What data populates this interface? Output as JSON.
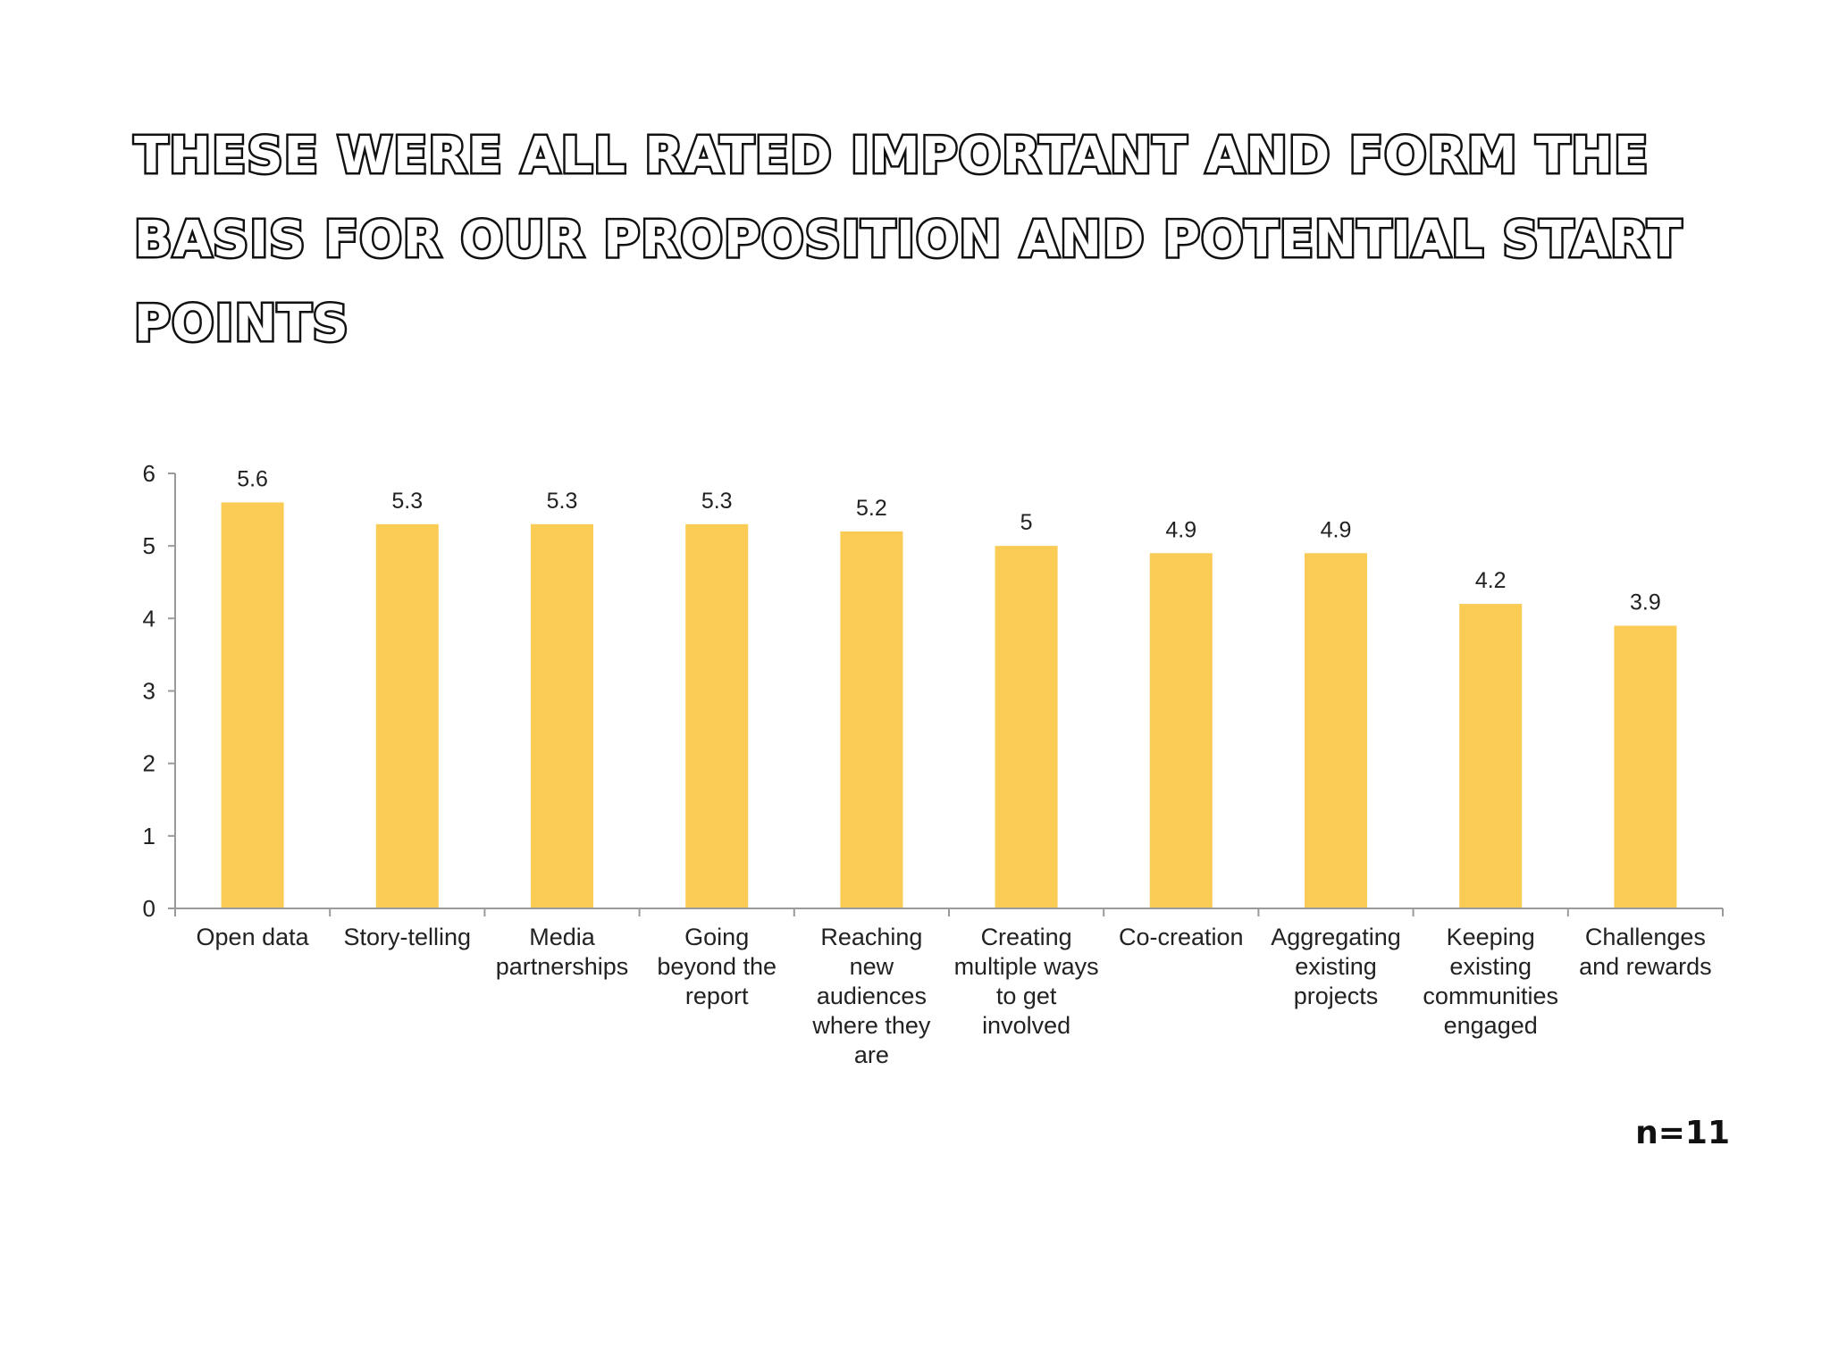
{
  "slide": {
    "title": "These were all rated important and form the basis for our proposition and potential start points",
    "sample_size": "n=11"
  },
  "chart_data": {
    "type": "bar",
    "categories": [
      "Open data",
      "Story-telling",
      "Media partnerships",
      "Going beyond the report",
      "Reaching new audiences where they are",
      "Creating multiple ways to get involved",
      "Co-creation",
      "Aggregating existing projects",
      "Keeping existing communities engaged",
      "Challenges and rewards"
    ],
    "category_lines": [
      [
        "Open data"
      ],
      [
        "Story-telling"
      ],
      [
        "Media",
        "partnerships"
      ],
      [
        "Going",
        "beyond the",
        "report"
      ],
      [
        "Reaching",
        "new",
        "audiences",
        "where they",
        "are"
      ],
      [
        "Creating",
        "multiple ways",
        "to get",
        "involved"
      ],
      [
        "Co-creation"
      ],
      [
        "Aggregating",
        "existing",
        "projects"
      ],
      [
        "Keeping",
        "existing",
        "communities",
        "engaged"
      ],
      [
        "Challenges",
        "and rewards"
      ]
    ],
    "values": [
      5.6,
      5.3,
      5.3,
      5.3,
      5.2,
      5,
      4.9,
      4.9,
      4.2,
      3.9
    ],
    "value_labels": [
      "5.6",
      "5.3",
      "5.3",
      "5.3",
      "5.2",
      "5",
      "4.9",
      "4.9",
      "4.2",
      "3.9"
    ],
    "yticks": [
      "0",
      "1",
      "2",
      "3",
      "4",
      "5",
      "6"
    ],
    "ylim": [
      0,
      6
    ],
    "bar_color": "#FACB55",
    "axis_color": "#9a9a9a",
    "grid": false,
    "legend": "none",
    "xlabel": "",
    "ylabel": ""
  }
}
